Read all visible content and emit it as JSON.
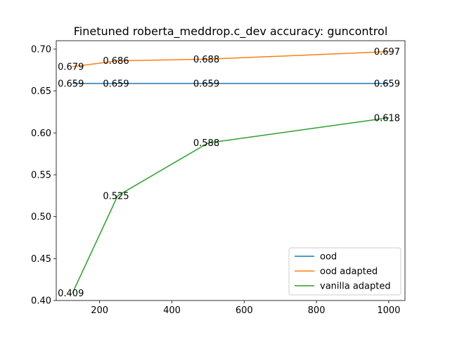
{
  "chart_data": {
    "type": "line",
    "title": "Finetuned roberta_meddrop.c_dev accuracy: guncontrol",
    "xlabel": "",
    "ylabel": "",
    "xlim": [
      80,
      1045
    ],
    "ylim": [
      0.4,
      0.71
    ],
    "x_ticks": [
      200,
      400,
      600,
      800,
      1000
    ],
    "y_ticks": [
      0.4,
      0.45,
      0.5,
      0.55,
      0.6,
      0.65,
      0.7
    ],
    "grid": false,
    "legend_position": "lower-right",
    "series": [
      {
        "name": "ood",
        "color": "#1f77b4",
        "x": [
          125,
          250,
          500,
          1000
        ],
        "y": [
          0.659,
          0.659,
          0.659,
          0.659
        ],
        "labels": [
          "0.659",
          "0.659",
          "0.659",
          "0.659"
        ]
      },
      {
        "name": "ood adapted",
        "color": "#ff7f0e",
        "x": [
          125,
          250,
          500,
          1000
        ],
        "y": [
          0.679,
          0.686,
          0.688,
          0.697
        ],
        "labels": [
          "0.679",
          "0.686",
          "0.688",
          "0.697"
        ]
      },
      {
        "name": "vanilla adapted",
        "color": "#2ca02c",
        "x": [
          125,
          250,
          500,
          1000
        ],
        "y": [
          0.409,
          0.525,
          0.588,
          0.618
        ],
        "labels": [
          "0.409",
          "0.525",
          "0.588",
          "0.618"
        ]
      }
    ]
  }
}
